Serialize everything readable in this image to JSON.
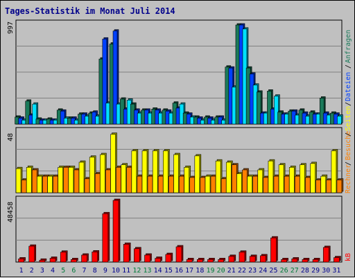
{
  "chart_data": {
    "type": "bar",
    "title": "Tages-Statistik im Monat Juli 2014",
    "days": [
      "1",
      "2",
      "3",
      "4",
      "5",
      "6",
      "7",
      "8",
      "9",
      "10",
      "11",
      "12",
      "13",
      "14",
      "15",
      "16",
      "17",
      "18",
      "19",
      "20",
      "21",
      "22",
      "23",
      "24",
      "25",
      "26",
      "27",
      "28",
      "29",
      "30",
      "31"
    ],
    "weekend_days": [
      "5",
      "6",
      "12",
      "13",
      "19",
      "20",
      "26",
      "27"
    ],
    "panels": [
      {
        "id": "top",
        "ymax_label": "997",
        "ymax": 997,
        "series": [
          {
            "name": "Anfragen",
            "color": "#1a7a5a",
            "values": [
              70,
              230,
              50,
              50,
              140,
              60,
              100,
              110,
              650,
              800,
              250,
              200,
              140,
              150,
              140,
              210,
              110,
              70,
              70,
              70,
              570,
              990,
              560,
              320,
              330,
              120,
              130,
              140,
              120,
              260,
              110
            ]
          },
          {
            "name": "Dateien",
            "color": "#0040ff",
            "values": [
              60,
              90,
              40,
              40,
              130,
              60,
              100,
              120,
              850,
              930,
              150,
              140,
              140,
              140,
              130,
              160,
              100,
              60,
              60,
              70,
              560,
              990,
              500,
              110,
              150,
              100,
              130,
              110,
              100,
              110,
              100
            ]
          },
          {
            "name": "Seiten",
            "color": "#00e0ff",
            "values": [
              40,
              200,
              40,
              40,
              60,
              40,
              80,
              80,
              210,
              200,
              240,
              110,
              110,
              110,
              110,
              200,
              70,
              40,
              40,
              40,
              370,
              950,
              390,
              110,
              280,
              100,
              90,
              80,
              100,
              90,
              80
            ]
          }
        ]
      },
      {
        "id": "middle",
        "ymax_label": "48",
        "ymax": 48,
        "series": [
          {
            "name": "Seiten",
            "color": "#ffff00",
            "values": [
              19,
              20,
              13,
              13,
              20,
              20,
              24,
              28,
              30,
              46,
              22,
              33,
              33,
              33,
              33,
              30,
              20,
              29,
              13,
              25,
              24,
              15,
              13,
              18,
              25,
              22,
              20,
              22,
              23,
              13,
              33
            ]
          },
          {
            "name": "Besuche",
            "color": "#ff8000",
            "values": [
              10,
              18,
              13,
              13,
              20,
              18,
              11,
              15,
              18,
              20,
              20,
              13,
              13,
              13,
              13,
              13,
              12,
              12,
              13,
              11,
              22,
              18,
              13,
              12,
              13,
              13,
              13,
              12,
              10,
              10,
              10
            ]
          }
        ]
      },
      {
        "id": "bottom",
        "ymax_label": "48458",
        "ymax": 48458,
        "series": [
          {
            "name": "kB",
            "color": "#ff0000",
            "values": [
              2500,
              12500,
              1500,
              3000,
              7800,
              2000,
              5500,
              8000,
              38000,
              48458,
              14000,
              10500,
              5500,
              3000,
              6000,
              12000,
              2000,
              2000,
              2000,
              2000,
              4500,
              7800,
              4500,
              5000,
              19000,
              2000,
              2500,
              2000,
              2000,
              11500,
              3500
            ]
          }
        ]
      }
    ],
    "side_labels": [
      {
        "text": "Anfragen",
        "color": "#1a7a5a"
      },
      {
        "text": "Dateien",
        "color": "#0040ff"
      },
      {
        "text": "Seiten",
        "color": "#ffff00"
      },
      {
        "text": "Besuche",
        "color": "#ff8000"
      },
      {
        "text": "Rechner",
        "color": "#ff8000"
      },
      {
        "text": "kB",
        "color": "#ff0000"
      }
    ],
    "colors": {
      "background": "#c0c0c0",
      "weekday_label": "#00008b",
      "weekend_label": "#007a3a",
      "grid": "#808080"
    }
  }
}
